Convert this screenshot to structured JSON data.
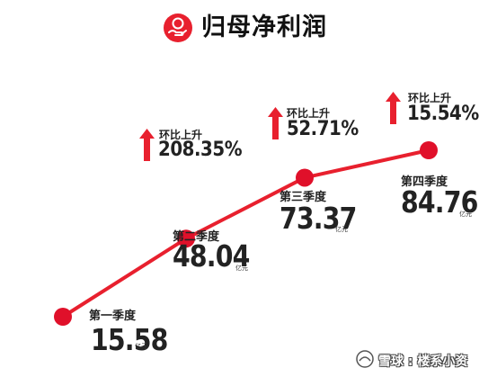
{
  "header": {
    "title": "归母净利润"
  },
  "colors": {
    "accent": "#e8202e",
    "point": "#e0102a",
    "text": "#222222"
  },
  "chart_data": {
    "type": "line",
    "title": "归母净利润",
    "categories": [
      "第一季度",
      "第二季度",
      "第三季度",
      "第四季度"
    ],
    "values": [
      15.58,
      48.04,
      73.37,
      84.76
    ],
    "value_labels": [
      "15.58",
      "48.04",
      "73.37",
      "84.76"
    ],
    "unit": "亿元",
    "growth": [
      null,
      {
        "label": "环比上升",
        "value": "208.35%"
      },
      {
        "label": "环比上升",
        "value": "52.71%"
      },
      {
        "label": "环比上升",
        "value": "15.54%"
      }
    ],
    "grid": false,
    "legend": "none"
  },
  "watermark": {
    "text": "雪球 : 楼系小资"
  }
}
